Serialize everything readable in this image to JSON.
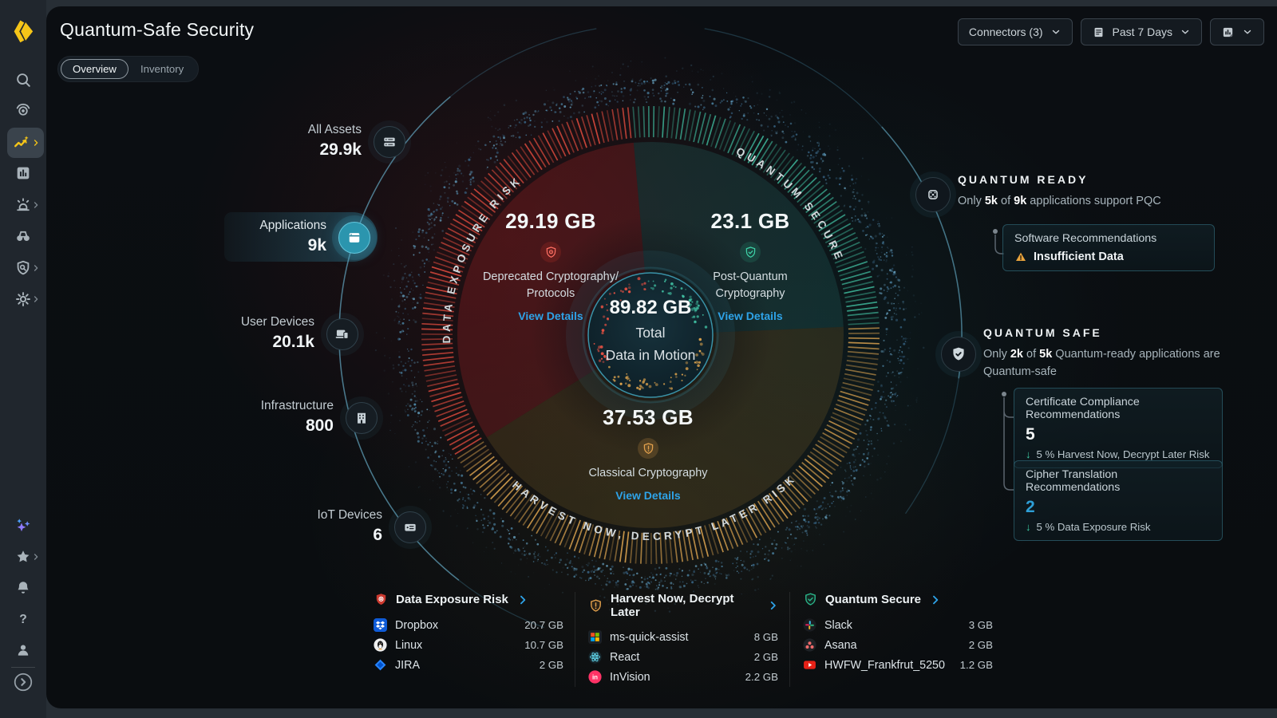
{
  "app": {
    "title": "Quantum-Safe Security"
  },
  "header": {
    "connectors": {
      "label": "Connectors (3)"
    },
    "time_range": {
      "label": "Past 7 Days"
    },
    "tabs": [
      {
        "label": "Overview"
      },
      {
        "label": "Inventory"
      }
    ]
  },
  "assets": {
    "items": [
      {
        "label": "All Assets",
        "value": "29.9k"
      },
      {
        "label": "Applications",
        "value": "9k"
      },
      {
        "label": "User Devices",
        "value": "20.1k"
      },
      {
        "label": "Infrastructure",
        "value": "800"
      },
      {
        "label": "IoT Devices",
        "value": "6"
      }
    ]
  },
  "ring": {
    "center": {
      "value": "89.82 GB",
      "line1": "Total",
      "line2": "Data in Motion"
    },
    "total_gb": 89.82,
    "segments": [
      {
        "id": "data-exposure-risk",
        "arc_label": "DATA EXPOSURE RISK",
        "value": "29.19 GB",
        "gb": 29.19,
        "sublabel1": "Deprecated Cryptography/",
        "sublabel2": "Protocols",
        "link": "View Details",
        "color": "#d8453a"
      },
      {
        "id": "quantum-secure",
        "arc_label": "QUANTUM SECURE",
        "value": "23.1 GB",
        "gb": 23.1,
        "sublabel1": "Post-Quantum",
        "sublabel2": "Cryptography",
        "link": "View Details",
        "color": "#37a18a"
      },
      {
        "id": "harvest-now-decrypt-later",
        "arc_label": "HARVEST NOW, DECRYPT LATER RISK",
        "value": "37.53 GB",
        "gb": 37.53,
        "sublabel1": "Classical Cryptography",
        "link": "View Details",
        "color": "#d29a4b"
      }
    ]
  },
  "chart_data": {
    "type": "pie",
    "title": "Total Data in Motion",
    "total_label": "89.82 GB",
    "categories": [
      "Data Exposure Risk",
      "Quantum Secure",
      "Harvest Now, Decrypt Later"
    ],
    "values": [
      29.19,
      23.1,
      37.53
    ],
    "unit": "GB"
  },
  "panels": [
    {
      "title": "QUANTUM READY",
      "desc": [
        [
          "Only ",
          false
        ],
        [
          "5k",
          true
        ],
        [
          " of ",
          false
        ],
        [
          "9k",
          true
        ],
        [
          " applications support PQC",
          false
        ]
      ],
      "cards": [
        {
          "title": "Software Recommendations",
          "status": "Insufficient Data"
        }
      ]
    },
    {
      "title": "QUANTUM SAFE",
      "desc": [
        [
          "Only ",
          false
        ],
        [
          "2k",
          true
        ],
        [
          " of ",
          false
        ],
        [
          "5k",
          true
        ],
        [
          " Quantum-ready applications are Quantum-safe",
          false
        ]
      ],
      "cards": [
        {
          "title": "Certificate Compliance Recommendations",
          "count": "5",
          "note": "5 % Harvest Now, Decrypt Later Risk"
        },
        {
          "title": "Cipher Translation Recommendations",
          "count": "2",
          "note": "5 % Data Exposure Risk"
        }
      ]
    }
  ],
  "legend": {
    "columns": [
      {
        "title": "Data Exposure Risk",
        "rows": [
          {
            "name": "Dropbox",
            "value": "20.7 GB"
          },
          {
            "name": "Linux",
            "value": "10.7 GB"
          },
          {
            "name": "JIRA",
            "value": "2 GB"
          }
        ]
      },
      {
        "title": "Harvest Now, Decrypt Later",
        "rows": [
          {
            "name": "ms-quick-assist",
            "value": "8 GB"
          },
          {
            "name": "React",
            "value": "2 GB"
          },
          {
            "name": "InVision",
            "value": "2.2 GB"
          }
        ]
      },
      {
        "title": "Quantum Secure",
        "rows": [
          {
            "name": "Slack",
            "value": "3 GB"
          },
          {
            "name": "Asana",
            "value": "2 GB"
          },
          {
            "name": "HWFW_Frankfrut_5250",
            "value": "1.2 GB"
          }
        ]
      }
    ]
  },
  "colors": {
    "accent_blue": "#2ea3e8",
    "red": "#d8453a",
    "teal": "#37a18a",
    "orange": "#d29a4b",
    "yellow": "#f5c518",
    "particle": "#4e87a8"
  }
}
